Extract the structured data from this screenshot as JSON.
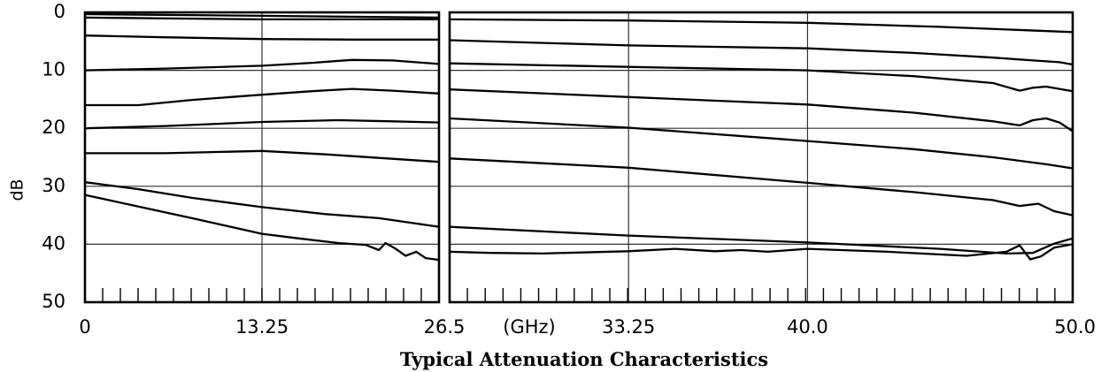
{
  "chart_data": {
    "type": "line",
    "title": "Typical Attenuation Characteristics",
    "ylabel": "dB",
    "xunit_label": "(GHz)",
    "ylim": [
      0,
      50
    ],
    "y_inverted": true,
    "y_ticks": [
      "0",
      "10",
      "20",
      "30",
      "40",
      "50"
    ],
    "grid": true,
    "panels": [
      {
        "xlim": [
          0,
          26.5
        ],
        "x_ticks": [
          "0",
          "13.25",
          "26.5"
        ],
        "series": [
          {
            "x": [
              0,
              13.25,
              26.5
            ],
            "y": [
              0.3,
              0.6,
              0.9
            ]
          },
          {
            "x": [
              0,
              13.25,
              26.5
            ],
            "y": [
              0.9,
              1.2,
              1.2
            ]
          },
          {
            "x": [
              0,
              6,
              13.25,
              20,
              26.5
            ],
            "y": [
              4.0,
              4.3,
              4.6,
              4.7,
              4.7
            ]
          },
          {
            "x": [
              0,
              6,
              13.25,
              17,
              20,
              23,
              26.5
            ],
            "y": [
              10.0,
              9.7,
              9.2,
              8.7,
              8.2,
              8.3,
              8.9
            ]
          },
          {
            "x": [
              0,
              4,
              8,
              13.25,
              17,
              20,
              23,
              26.5
            ],
            "y": [
              16.0,
              16.0,
              15.1,
              14.2,
              13.6,
              13.2,
              13.5,
              14.0
            ]
          },
          {
            "x": [
              0,
              6,
              13.25,
              19,
              23,
              26.5
            ],
            "y": [
              20.0,
              19.6,
              18.9,
              18.6,
              18.8,
              19.0
            ]
          },
          {
            "x": [
              0,
              6,
              13.25,
              18,
              22,
              26.5
            ],
            "y": [
              24.3,
              24.3,
              23.9,
              24.5,
              25.1,
              25.8
            ]
          },
          {
            "x": [
              0,
              4,
              8,
              13.25,
              18,
              22,
              26.5
            ],
            "y": [
              29.3,
              30.5,
              32.0,
              33.6,
              34.8,
              35.5,
              37.0
            ]
          },
          {
            "x": [
              0,
              4,
              8,
              13.25,
              16,
              19,
              21,
              22,
              22.5,
              23.2,
              24,
              24.8,
              25.5,
              26.5
            ],
            "y": [
              31.5,
              33.5,
              35.5,
              38.2,
              39.0,
              39.8,
              40.1,
              41.0,
              39.8,
              40.7,
              42.0,
              41.3,
              42.4,
              42.7
            ]
          }
        ]
      },
      {
        "xlim": [
          26.5,
          50.0
        ],
        "x_ticks": [
          "26.5",
          "33.25",
          "40.0",
          "50.0"
        ],
        "series": [
          {
            "x": [
              26.5,
              33.25,
              40.0,
              45,
              50.0
            ],
            "y": [
              1.2,
              1.4,
              1.8,
              2.5,
              3.4
            ]
          },
          {
            "x": [
              26.5,
              33.25,
              40.0,
              44,
              47,
              48.5,
              49.5,
              50.0
            ],
            "y": [
              4.8,
              5.7,
              6.2,
              7.0,
              7.8,
              8.3,
              8.6,
              9.0
            ]
          },
          {
            "x": [
              26.5,
              33.25,
              40.0,
              44,
              47,
              48,
              48.5,
              49,
              49.5,
              50.0
            ],
            "y": [
              8.8,
              9.4,
              10.0,
              11.0,
              12.2,
              13.5,
              13.0,
              12.8,
              13.2,
              13.6
            ]
          },
          {
            "x": [
              26.5,
              33.25,
              40.0,
              44,
              47,
              48,
              48.5,
              49,
              49.5,
              50.0
            ],
            "y": [
              13.3,
              14.6,
              15.9,
              17.3,
              18.8,
              19.5,
              18.6,
              18.3,
              19.0,
              20.5
            ]
          },
          {
            "x": [
              26.5,
              33.25,
              40.0,
              44,
              47,
              49,
              50.0
            ],
            "y": [
              18.3,
              19.9,
              22.2,
              23.6,
              25.0,
              26.2,
              26.9
            ]
          },
          {
            "x": [
              26.5,
              33.25,
              40.0,
              44,
              47,
              48,
              48.7,
              49.3,
              50.0
            ],
            "y": [
              25.2,
              26.8,
              29.4,
              31.0,
              32.4,
              33.4,
              33.0,
              34.3,
              35.0
            ]
          },
          {
            "x": [
              26.5,
              33.25,
              40.0,
              45,
              47.5,
              48.5,
              49.3,
              50.0
            ],
            "y": [
              37.0,
              38.5,
              39.7,
              40.8,
              41.6,
              41.5,
              39.9,
              39.0
            ]
          },
          {
            "x": [
              26.5,
              28,
              30,
              33.25,
              35,
              36.5,
              37.5,
              38.5,
              40.0,
              43,
              46,
              47.5,
              48,
              48.4,
              48.8,
              49.3,
              50.0
            ],
            "y": [
              41.3,
              41.5,
              41.6,
              41.2,
              40.8,
              41.2,
              41.0,
              41.3,
              40.8,
              41.3,
              42.0,
              41.3,
              40.2,
              42.6,
              42.1,
              40.6,
              40.0
            ]
          }
        ]
      }
    ]
  }
}
